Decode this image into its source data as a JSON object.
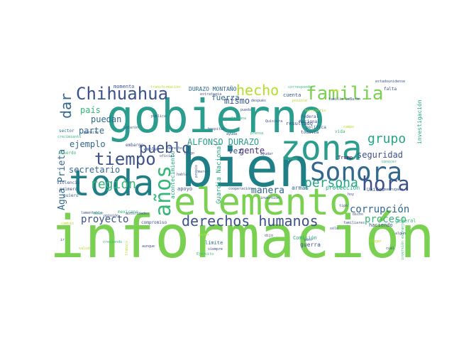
{
  "word_cloud": {
    "background": "#ffffff",
    "palette": {
      "green": "#7ad151",
      "teal": "#2a9d8f",
      "deepteal": "#1f7f86",
      "blue": "#31688e",
      "navy": "#3b528b",
      "purple": "#472c7a",
      "darkpurple": "#440154",
      "lime": "#b5de2b",
      "yellow": "#fde725",
      "mint": "#35b779",
      "seafoam": "#22a884"
    },
    "words": [
      {
        "text": "información",
        "color": "green"
      },
      {
        "text": "gobierno",
        "color": "teal"
      },
      {
        "text": "bien",
        "color": "deepteal"
      },
      {
        "text": "elemento",
        "color": "green"
      },
      {
        "text": "toda",
        "color": "deepteal"
      },
      {
        "text": "zona",
        "color": "teal"
      },
      {
        "text": "Sonora",
        "color": "blue"
      },
      {
        "text": "años",
        "color": "mint"
      },
      {
        "text": "hora",
        "color": "navy"
      },
      {
        "text": "Chihuahua",
        "color": "navy"
      },
      {
        "text": "familia",
        "color": "green"
      },
      {
        "text": "hecho",
        "color": "lime"
      },
      {
        "text": "tiempo",
        "color": "navy"
      },
      {
        "text": "derechos humanos",
        "color": "navy"
      },
      {
        "text": "dar",
        "color": "blue"
      },
      {
        "text": "región",
        "color": "mint"
      },
      {
        "text": "pueblo",
        "color": "navy"
      },
      {
        "text": "persona",
        "color": "seafoam"
      },
      {
        "text": "grupo",
        "color": "seafoam"
      },
      {
        "text": "corrupción",
        "color": "blue"
      },
      {
        "text": "proceso",
        "color": "mint"
      },
      {
        "text": "Agua Prieta",
        "color": "blue"
      },
      {
        "text": "ALFONSO DURAZO",
        "color": "teal"
      },
      {
        "text": "proyecto",
        "color": "navy"
      },
      {
        "text": "manera",
        "color": "blue"
      },
      {
        "text": "seguridad",
        "color": "navy"
      },
      {
        "text": "mismo",
        "color": "navy"
      },
      {
        "text": "país",
        "color": "mint"
      },
      {
        "text": "puedan",
        "color": "blue"
      },
      {
        "text": "secretario",
        "color": "blue"
      },
      {
        "text": "parte",
        "color": "blue"
      },
      {
        "text": "ejemplo",
        "color": "blue"
      },
      {
        "text": "gente",
        "color": "purple"
      },
      {
        "text": "vez",
        "color": "navy"
      },
      {
        "text": "fuerza",
        "color": "blue"
      },
      {
        "text": "DURAZO MONTAÑO",
        "color": "blue"
      },
      {
        "text": "Guardia Nacional",
        "color": "seafoam"
      },
      {
        "text": "acontecimiento",
        "color": "seafoam"
      },
      {
        "text": "protección",
        "color": "seafoam"
      },
      {
        "text": "armas",
        "color": "blue"
      },
      {
        "text": "investigación",
        "color": "seafoam"
      },
      {
        "text": "Unidos",
        "color": "navy"
      },
      {
        "text": "guerra",
        "color": "navy"
      },
      {
        "text": "Comisión",
        "color": "seafoam"
      },
      {
        "text": "límite",
        "color": "blue"
      },
      {
        "text": "haciendo",
        "color": "navy"
      },
      {
        "text": "general",
        "color": "mint"
      },
      {
        "text": "resultado",
        "color": "navy"
      },
      {
        "text": "cuenta",
        "color": "navy"
      },
      {
        "text": "Trump",
        "color": "darkpurple"
      },
      {
        "text": "momento",
        "color": "navy"
      },
      {
        "text": "apoyo",
        "color": "navy"
      },
      {
        "text": "violencia",
        "color": "navy"
      },
      {
        "text": "acuerdo",
        "color": "mint"
      },
      {
        "text": "sector",
        "color": "blue"
      },
      {
        "text": "quiero",
        "color": "blue"
      },
      {
        "text": "primero",
        "color": "navy"
      },
      {
        "text": "empleo",
        "color": "navy"
      },
      {
        "text": "embargo",
        "color": "navy"
      },
      {
        "text": "compromiso",
        "color": "navy"
      },
      {
        "text": "mexicano",
        "color": "mint"
      },
      {
        "text": "opinión",
        "color": "navy"
      },
      {
        "text": "autoridades",
        "color": "navy"
      },
      {
        "text": "cooperación",
        "color": "navy"
      },
      {
        "text": "hospital",
        "color": "navy"
      },
      {
        "text": "Federal",
        "color": "navy"
      },
      {
        "text": "Nacional",
        "color": "navy"
      },
      {
        "text": "política",
        "color": "navy"
      },
      {
        "text": "todavía",
        "color": "navy"
      },
      {
        "text": "vida",
        "color": "mint"
      },
      {
        "text": "falta",
        "color": "navy"
      },
      {
        "text": "estadounidense",
        "color": "navy"
      },
      {
        "text": "familia LeBarón",
        "color": "navy"
      },
      {
        "text": "familiares",
        "color": "navy"
      },
      {
        "text": "ayudar",
        "color": "navy"
      },
      {
        "text": "estrategia",
        "color": "navy"
      },
      {
        "text": "después",
        "color": "navy"
      },
      {
        "text": "corresponde",
        "color": "mint"
      },
      {
        "text": "transformación",
        "color": "lime"
      },
      {
        "text": "siempre",
        "color": "navy"
      },
      {
        "text": "Ejército",
        "color": "mint"
      },
      {
        "text": "trabajo",
        "color": "lime"
      },
      {
        "text": "madrugada",
        "color": "navy"
      },
      {
        "text": "conocer",
        "color": "mint"
      },
      {
        "text": "inversión extranjera",
        "color": "mint"
      },
      {
        "text": "cambio",
        "color": "lime"
      },
      {
        "text": "lamentable",
        "color": "navy"
      },
      {
        "text": "creciendo",
        "color": "mint"
      },
      {
        "text": "crecimiento",
        "color": "mint"
      },
      {
        "text": "pública",
        "color": "navy"
      },
      {
        "text": "poder",
        "color": "lime"
      },
      {
        "text": "salud",
        "color": "lime"
      },
      {
        "text": "aunque",
        "color": "navy"
      },
      {
        "text": "sólo",
        "color": "navy"
      },
      {
        "text": "algún",
        "color": "navy"
      },
      {
        "text": "cuál",
        "color": "navy"
      },
      {
        "text": "hoy",
        "color": "navy"
      },
      {
        "text": "tipo",
        "color": "navy"
      },
      {
        "text": "dicho",
        "color": "navy"
      },
      {
        "text": "tomar",
        "color": "mint"
      },
      {
        "text": "territorio",
        "color": "lime"
      },
      {
        "text": "LeBarón",
        "color": "blue"
      },
      {
        "text": "inversión",
        "color": "navy"
      },
      {
        "text": "ayuda",
        "color": "navy"
      },
      {
        "text": "prensa",
        "color": "mint"
      },
      {
        "text": "Quisiera",
        "color": "navy"
      },
      {
        "text": "Galeana",
        "color": "mint"
      },
      {
        "text": "marco",
        "color": "navy"
      },
      {
        "text": "hablar",
        "color": "navy"
      },
      {
        "text": "puedo",
        "color": "navy"
      },
      {
        "text": "propio",
        "color": "navy"
      },
      {
        "text": "posible",
        "color": "lime"
      },
      {
        "text": "tengo",
        "color": "navy"
      },
      {
        "text": "permite",
        "color": "navy"
      },
      {
        "text": "derecho",
        "color": "navy"
      },
      {
        "text": "ir",
        "color": "navy"
      },
      {
        "text": "oficial",
        "color": "navy"
      },
      {
        "text": "dijo",
        "color": "navy"
      },
      {
        "text": "ciudad",
        "color": "mint"
      },
      {
        "text": "todo",
        "color": "yellow"
      },
      {
        "text": "campo",
        "color": "lime"
      },
      {
        "text": "peor",
        "color": "navy"
      },
      {
        "text": "llegar",
        "color": "lime"
      }
    ]
  }
}
